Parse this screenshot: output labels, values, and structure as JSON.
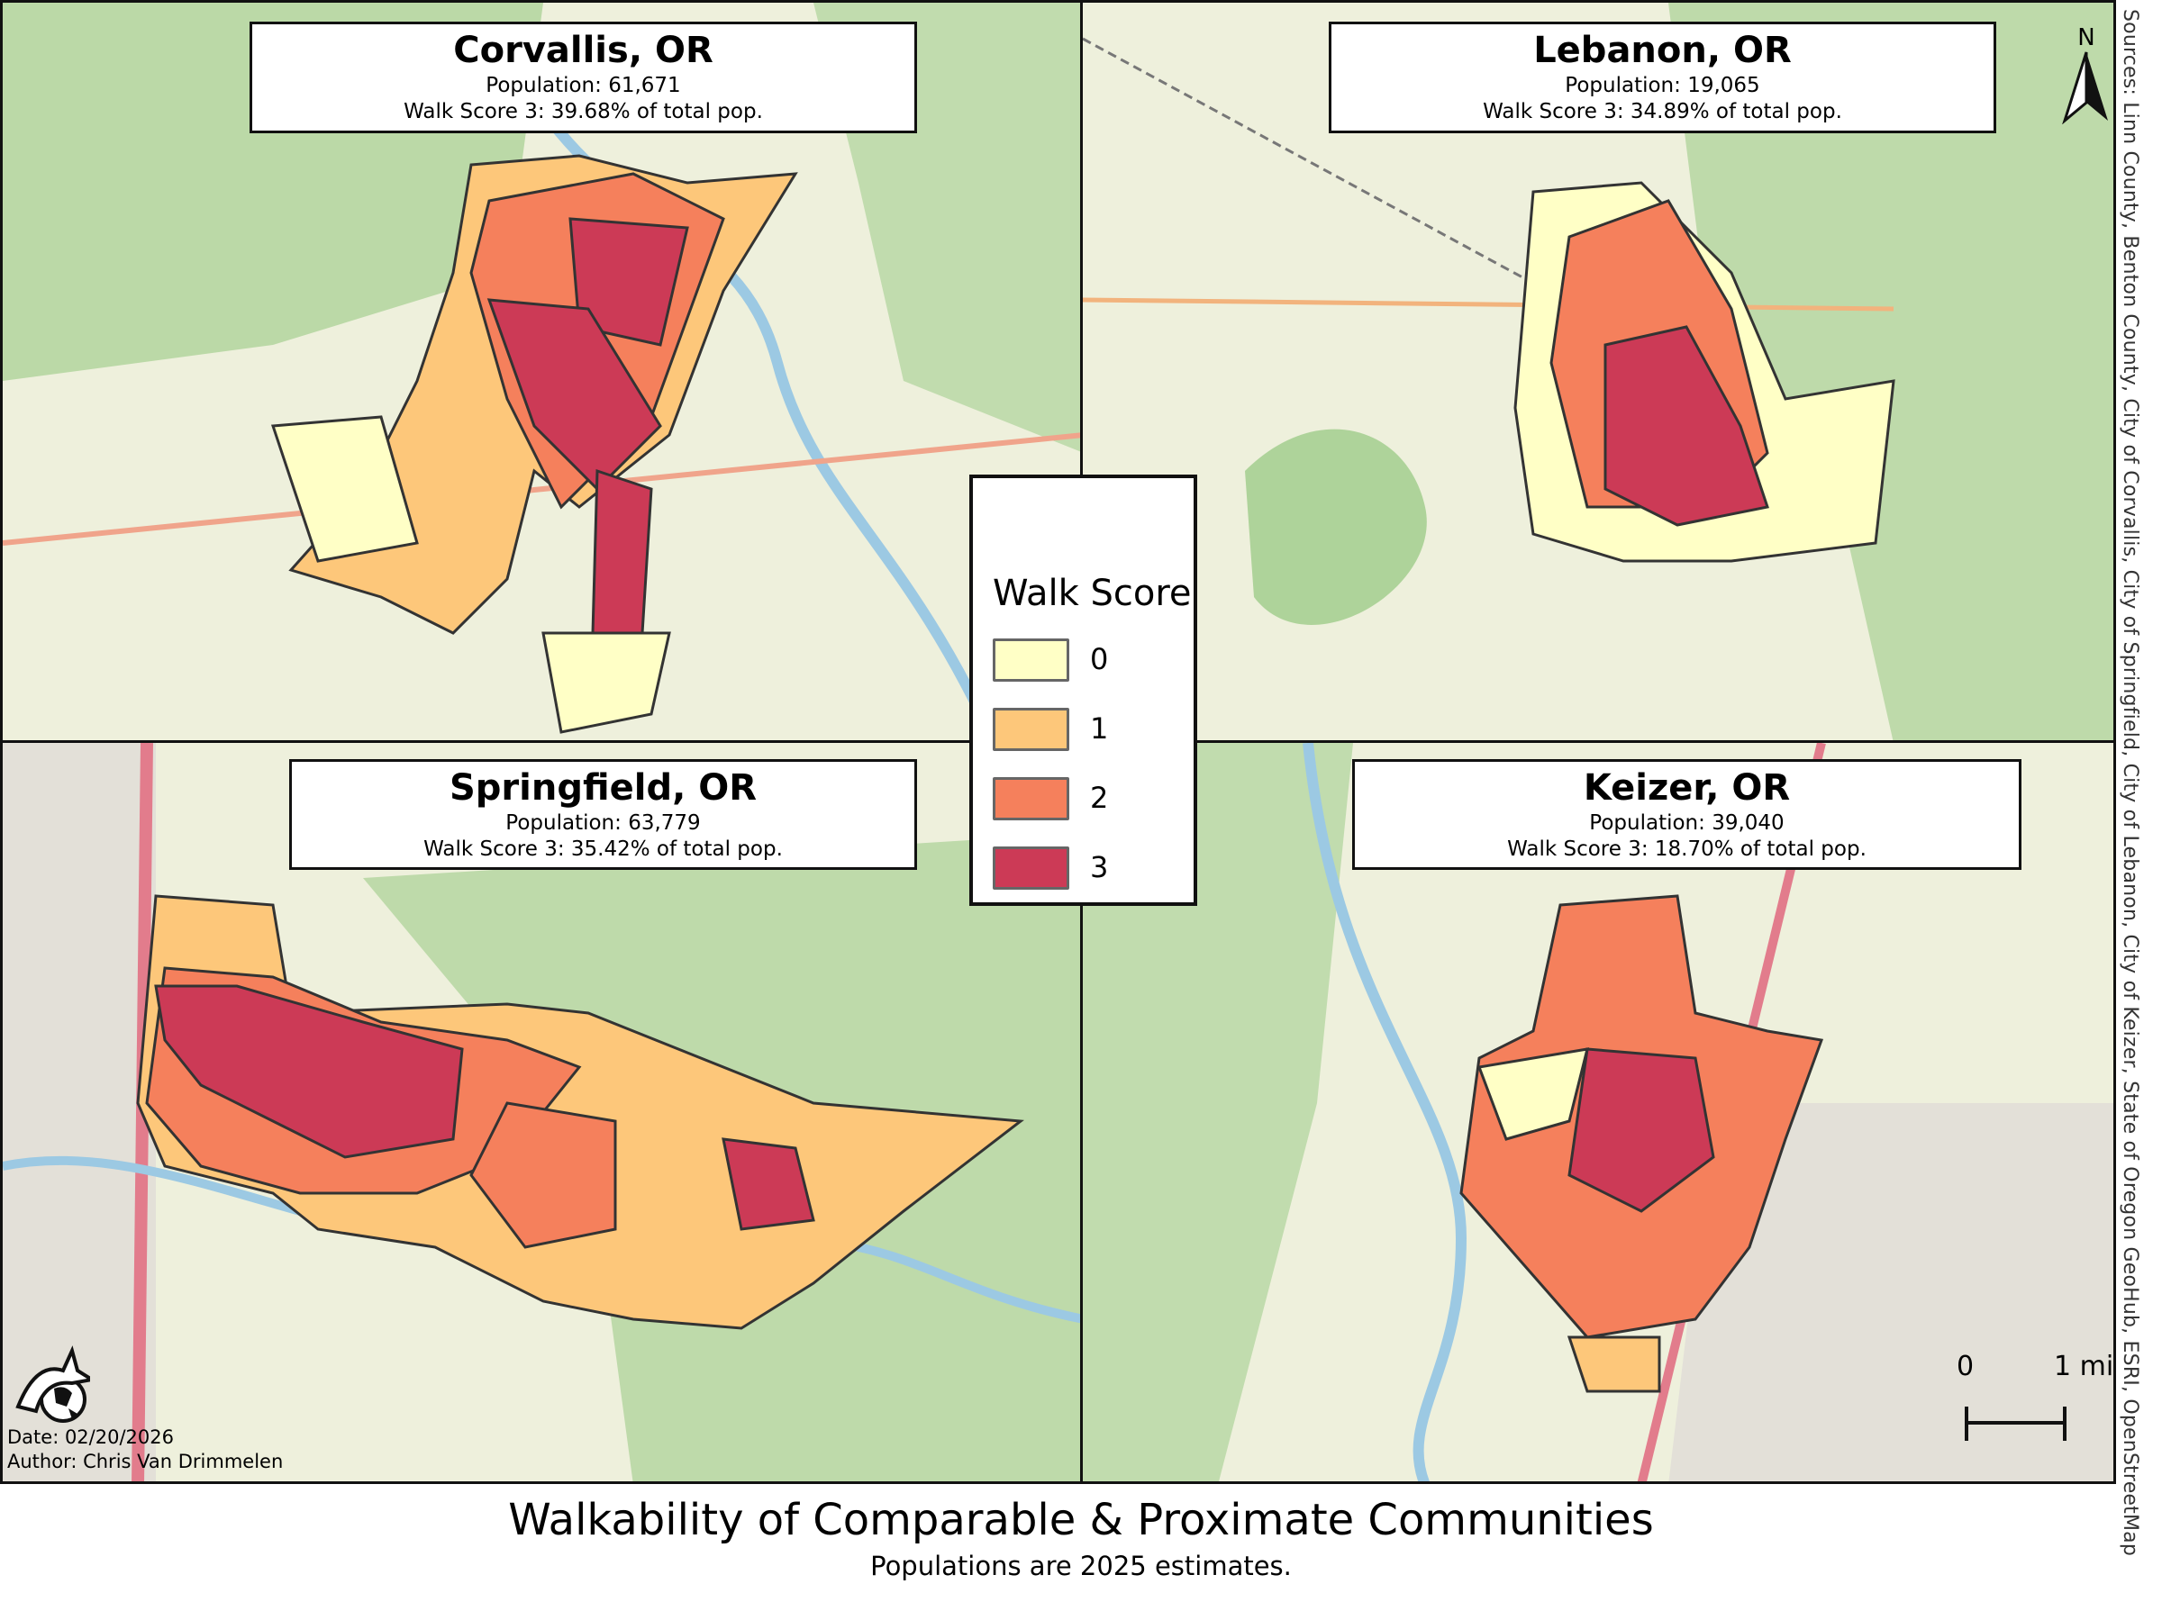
{
  "panels": [
    {
      "city": "Corvallis, OR",
      "population": "Population: 61,671",
      "walk3": "Walk Score 3: 39.68% of total pop."
    },
    {
      "city": "Lebanon, OR",
      "population": "Population: 19,065",
      "walk3": "Walk Score 3: 34.89% of total pop."
    },
    {
      "city": "Springfield, OR",
      "population": "Population: 63,779",
      "walk3": "Walk Score 3: 35.42% of total pop."
    },
    {
      "city": "Keizer, OR",
      "population": "Population: 39,040",
      "walk3": "Walk Score 3: 18.70% of total pop."
    }
  ],
  "legend": {
    "title": "Walk Score",
    "items": [
      {
        "label": "0",
        "color": "#ffffc6"
      },
      {
        "label": "1",
        "color": "#fdc77a"
      },
      {
        "label": "2",
        "color": "#f5805c"
      },
      {
        "label": "3",
        "color": "#cc3a56"
      }
    ]
  },
  "north_label": "N",
  "scale": {
    "start": "0",
    "end": "1 mi"
  },
  "sources": "Sources: Linn County, Benton County, City of Corvallis, City of Springfield, City of Lebanon, City of Keizer, State of Oregon GeoHub, ESRI, OpenStreetMap",
  "date": "Date: 02/20/2026",
  "author": "Author: Chris Van Drimmelen",
  "title": "Walkability of Comparable & Proximate Communities",
  "subtitle": "Populations are 2025 estimates."
}
